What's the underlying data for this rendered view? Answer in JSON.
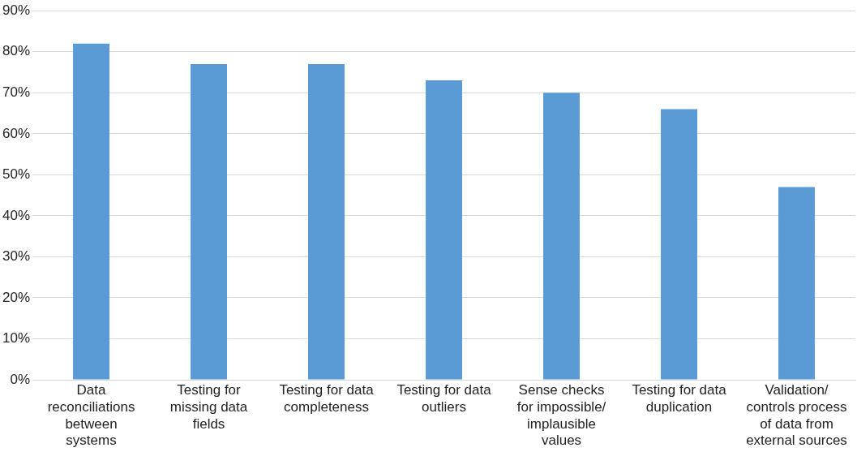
{
  "chart_data": {
    "type": "bar",
    "categories": [
      "Data reconciliations between systems",
      "Testing for missing data fields",
      "Testing for data completeness",
      "Testing for data outliers",
      "Sense checks for impossible/ implausible values",
      "Testing for data duplication",
      "Validation/ controls process of data from external sources"
    ],
    "values": [
      82,
      77,
      77,
      73,
      70,
      66,
      47
    ],
    "color": "#5b9bd5",
    "ylim": [
      0,
      90
    ],
    "yticks": [
      {
        "value": 0,
        "label": "0%"
      },
      {
        "value": 10,
        "label": "10%"
      },
      {
        "value": 20,
        "label": "20%"
      },
      {
        "value": 30,
        "label": "30%"
      },
      {
        "value": 40,
        "label": "40%"
      },
      {
        "value": 50,
        "label": "50%"
      },
      {
        "value": 60,
        "label": "60%"
      },
      {
        "value": 70,
        "label": "70%"
      },
      {
        "value": 80,
        "label": "80%"
      },
      {
        "value": 90,
        "label": "90%"
      }
    ],
    "grid": "y",
    "legend": false
  }
}
